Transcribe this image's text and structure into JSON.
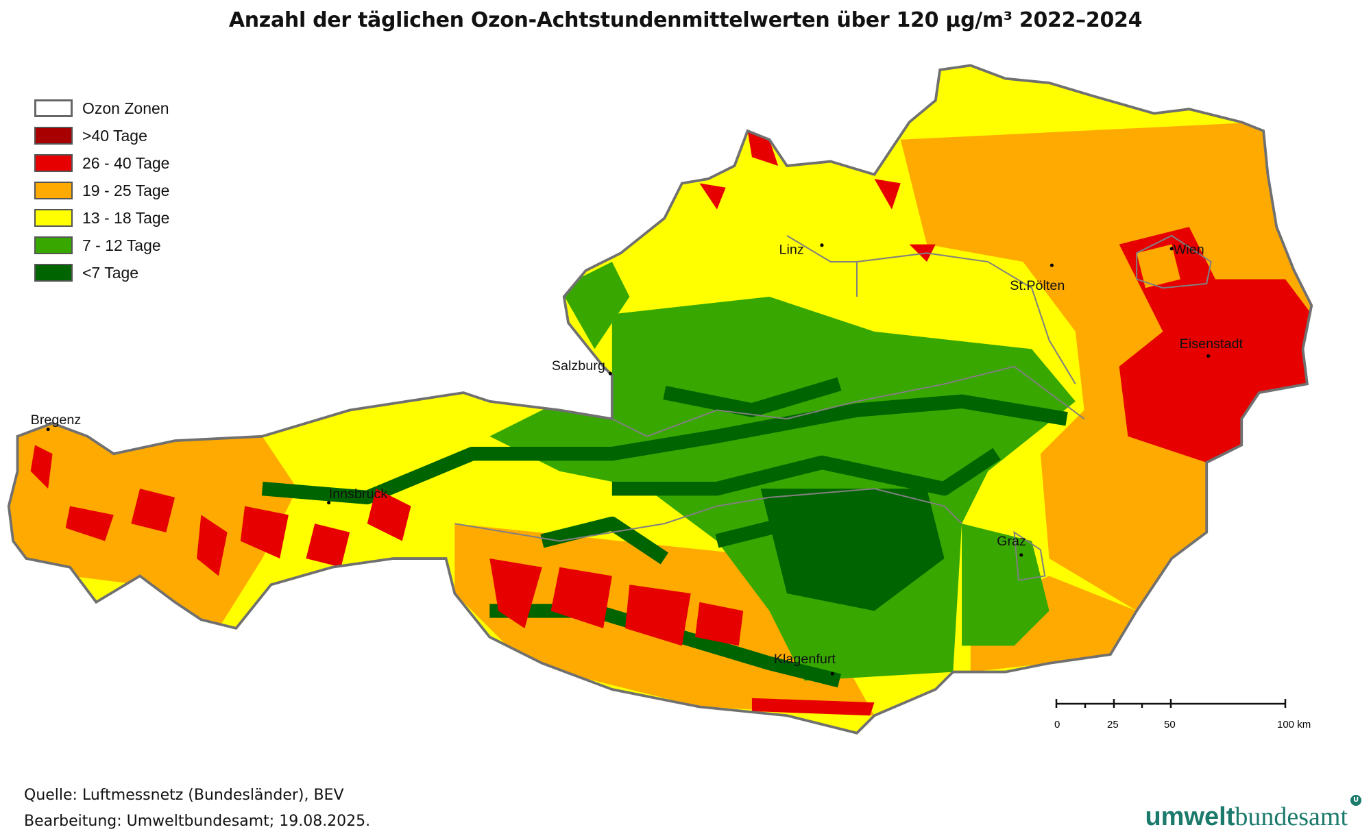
{
  "title": "Anzahl der täglichen Ozon-Achtstundenmittelwerten über 120 µg/m³ 2022–2024",
  "legend": [
    {
      "label": "Ozon Zonen",
      "color": "#ffffff"
    },
    {
      "label": ">40 Tage",
      "color": "#a80000"
    },
    {
      "label": "26 - 40 Tage",
      "color": "#e60000"
    },
    {
      "label": "19 - 25 Tage",
      "color": "#ffaa00"
    },
    {
      "label": "13 - 18 Tage",
      "color": "#ffff00"
    },
    {
      "label": "7 - 12 Tage",
      "color": "#38a800"
    },
    {
      "label": "<7 Tage",
      "color": "#006400"
    }
  ],
  "cities": {
    "bregenz": "Bregenz",
    "innsbruck": "Innsbruck",
    "salzburg": "Salzburg",
    "linz": "Linz",
    "stpoelten": "St.Pölten",
    "wien": "Wien",
    "eisenstadt": "Eisenstadt",
    "graz": "Graz",
    "klagenfurt": "Klagenfurt"
  },
  "scale_bar": {
    "ticks": [
      "0",
      "25",
      "50",
      "100 km"
    ]
  },
  "footer": {
    "source": "Quelle: Luftmessnetz (Bundesländer), BEV",
    "processing": "Bearbeitung: Umweltbundesamt; 19.08.2025."
  },
  "logo": {
    "part1": "umwelt",
    "part2": "bundesamt",
    "mark": "U"
  }
}
